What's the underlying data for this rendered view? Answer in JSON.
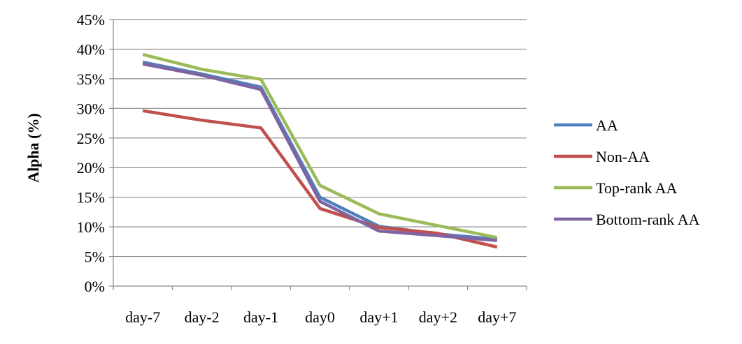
{
  "chart_data": {
    "type": "line",
    "categories": [
      "day-7",
      "day-2",
      "day-1",
      "day0",
      "day+1",
      "day+2",
      "day+7"
    ],
    "ylabel": "Alpha (%)",
    "xlabel": "",
    "ylim": [
      0,
      45
    ],
    "yticks": [
      0,
      5,
      10,
      15,
      20,
      25,
      30,
      35,
      40,
      45
    ],
    "ytick_suffix": "%",
    "grid": true,
    "legend_position": "right",
    "series": [
      {
        "name": "AA",
        "color": "#4F81BD",
        "values": [
          37.8,
          35.8,
          33.6,
          15.0,
          10.1,
          8.8,
          7.9
        ]
      },
      {
        "name": "Non-AA",
        "color": "#C0504D",
        "values": [
          29.6,
          28.0,
          26.7,
          13.1,
          9.9,
          8.9,
          6.6
        ]
      },
      {
        "name": "Top-rank AA",
        "color": "#9BBB59",
        "values": [
          39.1,
          36.6,
          34.9,
          17.0,
          12.2,
          10.2,
          8.2
        ]
      },
      {
        "name": "Bottom-rank AA",
        "color": "#8064A2",
        "values": [
          37.5,
          35.6,
          33.2,
          14.3,
          9.3,
          8.5,
          7.7
        ]
      }
    ]
  }
}
